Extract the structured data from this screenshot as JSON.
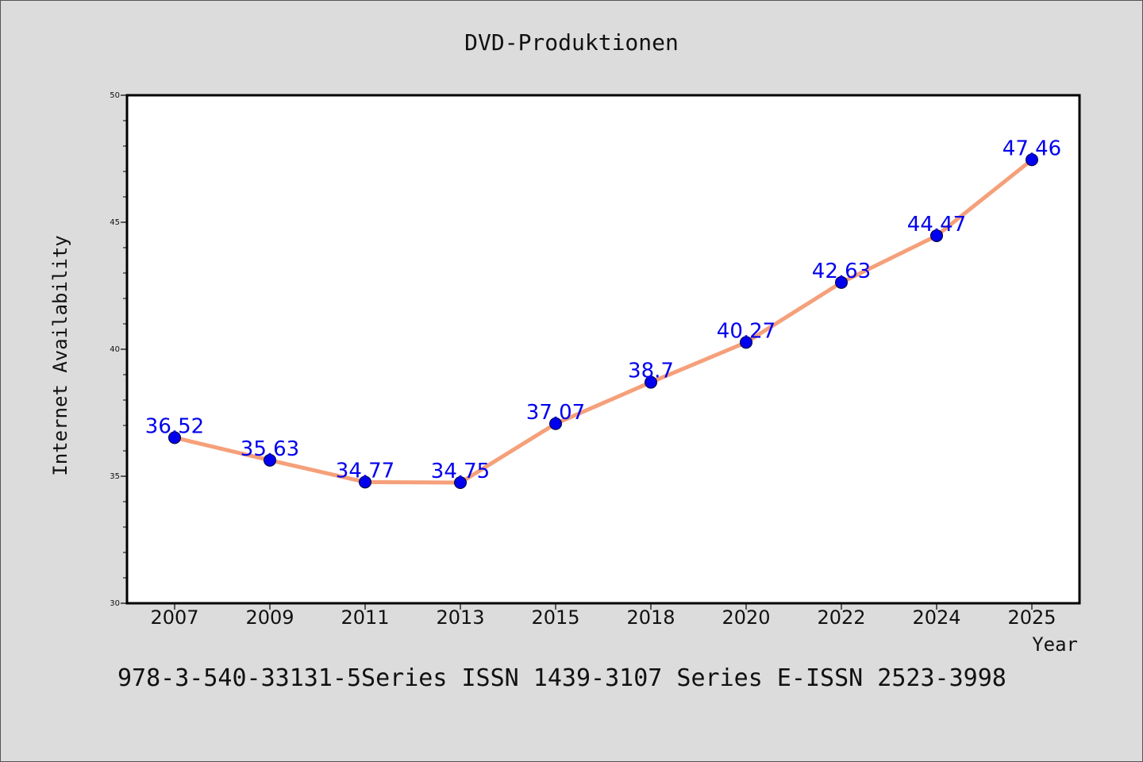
{
  "chart_data": {
    "type": "line",
    "title": "DVD-Produktionen",
    "xlabel": "Year",
    "ylabel": "Internet Availability",
    "footer": "978-3-540-33131-5Series ISSN 1439-3107 Series E-ISSN 2523-3998",
    "categories": [
      "2007",
      "2009",
      "2011",
      "2013",
      "2015",
      "2018",
      "2020",
      "2022",
      "2024",
      "2025"
    ],
    "series": [
      {
        "values": [
          36.52,
          35.63,
          34.77,
          34.75,
          37.07,
          38.7,
          40.27,
          42.63,
          44.47,
          47.46
        ],
        "labels": [
          "36.52",
          "35.63",
          "34.77",
          "34.75",
          "37.07",
          "38.7",
          "40.27",
          "42.63",
          "44.47",
          "47.46"
        ],
        "line_color": "#f5a07a",
        "marker_color": "#0000ee",
        "label_color": "#0000ee"
      }
    ],
    "ylim": [
      30,
      50
    ],
    "yticks": [
      "30",
      "35",
      "40",
      "45",
      "50"
    ],
    "grid": false,
    "legend": "none"
  },
  "colors": {
    "background": "#dcdcdc",
    "plot_background": "#ffffff",
    "axis": "#000000"
  }
}
